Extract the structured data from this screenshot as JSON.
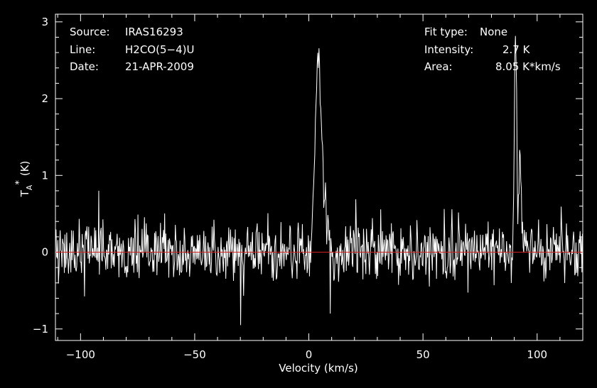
{
  "header": {
    "source_label": "Source:",
    "source_value": "IRAS16293",
    "line_label": "Line:",
    "line_value": "H2CO(5−4)U",
    "date_label": "Date:",
    "date_value": "21-APR-2009",
    "fit_label": "Fit type:",
    "fit_value": "None",
    "intensity_label": "Intensity:",
    "intensity_value": "2.7 K",
    "area_label": "Area:",
    "area_value": "8.05 K*km/s"
  },
  "chart_data": {
    "type": "line",
    "xlabel": "Velocity (km/s)",
    "ylabel_main": "T",
    "ylabel_super": "*",
    "ylabel_sub": "A",
    "ylabel_unit": "(K)",
    "xlim": [
      -111,
      120
    ],
    "ylim": [
      -1.15,
      3.1
    ],
    "x_ticks": [
      -100,
      -50,
      0,
      50,
      100
    ],
    "x_tick_labels": [
      "−100",
      "−50",
      "0",
      "50",
      "100"
    ],
    "y_ticks": [
      -1,
      0,
      1,
      2,
      3
    ],
    "y_tick_labels": [
      "−1",
      "0",
      "1",
      "2",
      "3"
    ],
    "grid": false,
    "colors": {
      "background": "#000000",
      "spectrum": "#ffffff",
      "baseline": "#d42020",
      "axes": "#ffffff"
    },
    "baseline_y": 0,
    "spectrum": {
      "channel_width_kms": 0.26,
      "noise_rms_K": 0.19,
      "peaks": [
        {
          "center": 4.0,
          "width": 1.2,
          "peak": 2.45
        },
        {
          "center": 6.5,
          "width": 1.5,
          "peak": 0.6
        },
        {
          "center": 90.5,
          "width": 0.5,
          "peak": 2.8
        },
        {
          "center": 92.5,
          "width": 0.6,
          "peak": 1.2
        }
      ],
      "spikes": [
        {
          "x": -92,
          "y": 0.8
        },
        {
          "x": -30,
          "y": -0.95
        },
        {
          "x": 9.5,
          "y": -0.8
        }
      ]
    }
  }
}
